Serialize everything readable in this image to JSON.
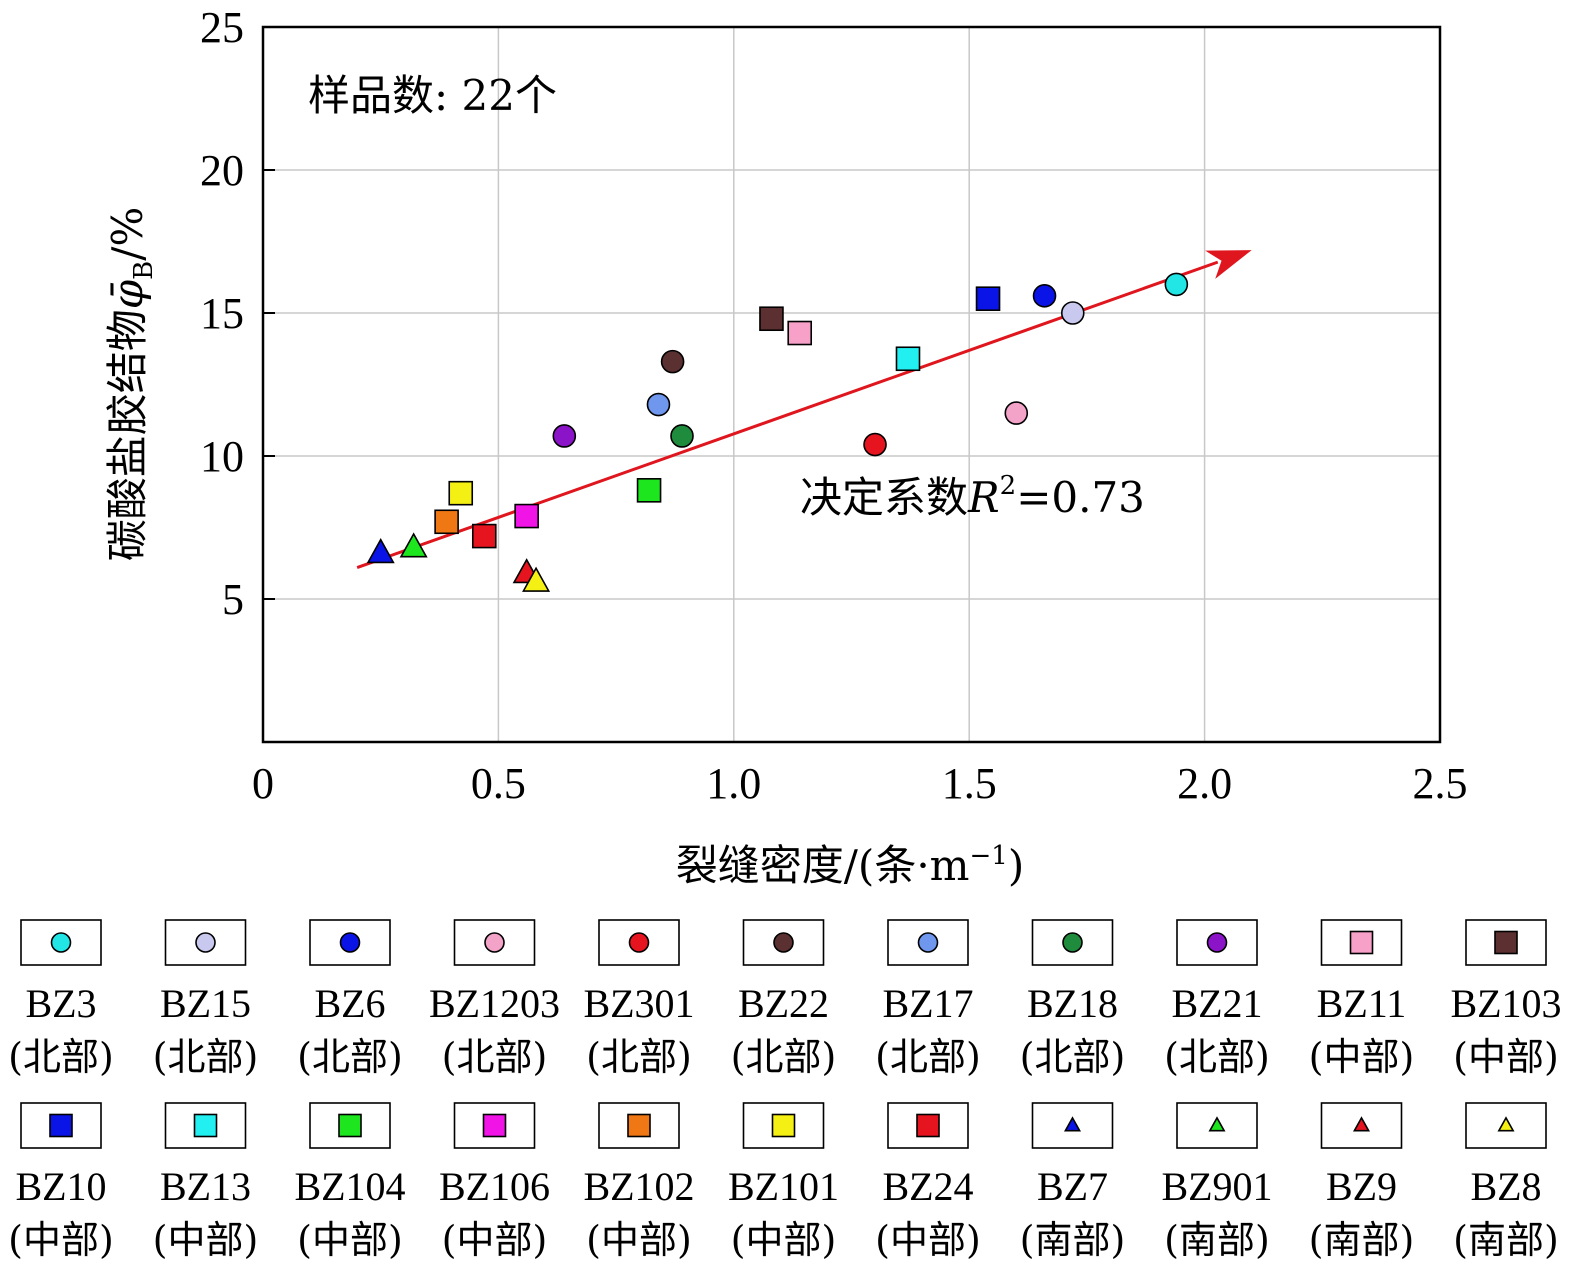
{
  "chart_data": {
    "type": "scatter",
    "xlabel_text": "裂缝密度/(条·m",
    "xlabel_sup": "−1",
    "xlabel_close": ")",
    "ylabel_text": "碳酸盐胶结物",
    "ylabel_symbol": "φ̄",
    "ylabel_sub": "B",
    "ylabel_unit": "/%",
    "xlim": [
      0,
      2.5
    ],
    "ylim": [
      0,
      25
    ],
    "x_ticks": [
      "0",
      "0.5",
      "1.0",
      "1.5",
      "2.0",
      "2.5"
    ],
    "y_ticks": [
      "5",
      "10",
      "15",
      "20",
      "25"
    ],
    "grid": true,
    "sample_count_text": "样品数: 22个",
    "r2_prefix": "决定系数",
    "r2_symbol": "R",
    "r2_sup": "2",
    "r2_value": "=0.73",
    "trend_line": {
      "x": [
        0.2,
        2.1
      ],
      "y": [
        6.1,
        17.2
      ],
      "color": "#e0161e"
    },
    "series": [
      {
        "name": "BZ3",
        "region": "(北部)",
        "marker": "circle",
        "color": "#22e6e6",
        "points": [
          [
            1.94,
            16.0
          ]
        ]
      },
      {
        "name": "BZ15",
        "region": "(北部)",
        "marker": "circle",
        "color": "#c9c9f0",
        "points": [
          [
            1.72,
            15.0
          ]
        ]
      },
      {
        "name": "BZ6",
        "region": "(北部)",
        "marker": "circle",
        "color": "#0a14e6",
        "points": [
          [
            1.66,
            15.6
          ]
        ]
      },
      {
        "name": "BZ1203",
        "region": "(北部)",
        "marker": "circle",
        "color": "#f3a2c8",
        "points": [
          [
            1.6,
            11.5
          ]
        ]
      },
      {
        "name": "BZ301",
        "region": "(北部)",
        "marker": "circle",
        "color": "#e6141e",
        "points": [
          [
            1.3,
            10.4
          ]
        ]
      },
      {
        "name": "BZ22",
        "region": "(北部)",
        "marker": "circle",
        "color": "#5a3030",
        "points": [
          [
            0.87,
            13.3
          ]
        ]
      },
      {
        "name": "BZ17",
        "region": "(北部)",
        "marker": "circle",
        "color": "#6f97ee",
        "points": [
          [
            0.84,
            11.8
          ]
        ]
      },
      {
        "name": "BZ18",
        "region": "(北部)",
        "marker": "circle",
        "color": "#1e8c3c",
        "points": [
          [
            0.89,
            10.7
          ]
        ]
      },
      {
        "name": "BZ21",
        "region": "(北部)",
        "marker": "circle",
        "color": "#8c14c8",
        "points": [
          [
            0.64,
            10.7
          ]
        ]
      },
      {
        "name": "BZ11",
        "region": "(中部)",
        "marker": "square",
        "color": "#f7a1c9",
        "points": [
          [
            1.14,
            14.3
          ]
        ]
      },
      {
        "name": "BZ103",
        "region": "(中部)",
        "marker": "square",
        "color": "#5c3030",
        "points": [
          [
            1.08,
            14.8
          ]
        ]
      },
      {
        "name": "BZ10",
        "region": "(中部)",
        "marker": "square",
        "color": "#0a14e6",
        "points": [
          [
            1.54,
            15.5
          ]
        ]
      },
      {
        "name": "BZ13",
        "region": "(中部)",
        "marker": "square",
        "color": "#22f0f0",
        "points": [
          [
            1.37,
            13.4
          ]
        ]
      },
      {
        "name": "BZ104",
        "region": "(中部)",
        "marker": "square",
        "color": "#1ee61e",
        "points": [
          [
            0.82,
            8.8
          ]
        ]
      },
      {
        "name": "BZ106",
        "region": "(中部)",
        "marker": "square",
        "color": "#f014e6",
        "points": [
          [
            0.56,
            7.9
          ]
        ]
      },
      {
        "name": "BZ102",
        "region": "(中部)",
        "marker": "square",
        "color": "#f07814",
        "points": [
          [
            0.39,
            7.7
          ]
        ]
      },
      {
        "name": "BZ101",
        "region": "(中部)",
        "marker": "square",
        "color": "#f5f014",
        "points": [
          [
            0.42,
            8.7
          ]
        ]
      },
      {
        "name": "BZ24",
        "region": "(中部)",
        "marker": "square",
        "color": "#e6141e",
        "points": [
          [
            0.47,
            7.2
          ]
        ]
      },
      {
        "name": "BZ7",
        "region": "(南部)",
        "marker": "triangle",
        "color": "#0a14e6",
        "points": [
          [
            0.25,
            6.6
          ]
        ]
      },
      {
        "name": "BZ901",
        "region": "(南部)",
        "marker": "triangle",
        "color": "#1ee61e",
        "points": [
          [
            0.32,
            6.8
          ]
        ]
      },
      {
        "name": "BZ9",
        "region": "(南部)",
        "marker": "triangle",
        "color": "#e6141e",
        "points": [
          [
            0.56,
            5.9
          ]
        ]
      },
      {
        "name": "BZ8",
        "region": "(南部)",
        "marker": "triangle",
        "color": "#f5f014",
        "points": [
          [
            0.58,
            5.6
          ]
        ]
      }
    ]
  }
}
